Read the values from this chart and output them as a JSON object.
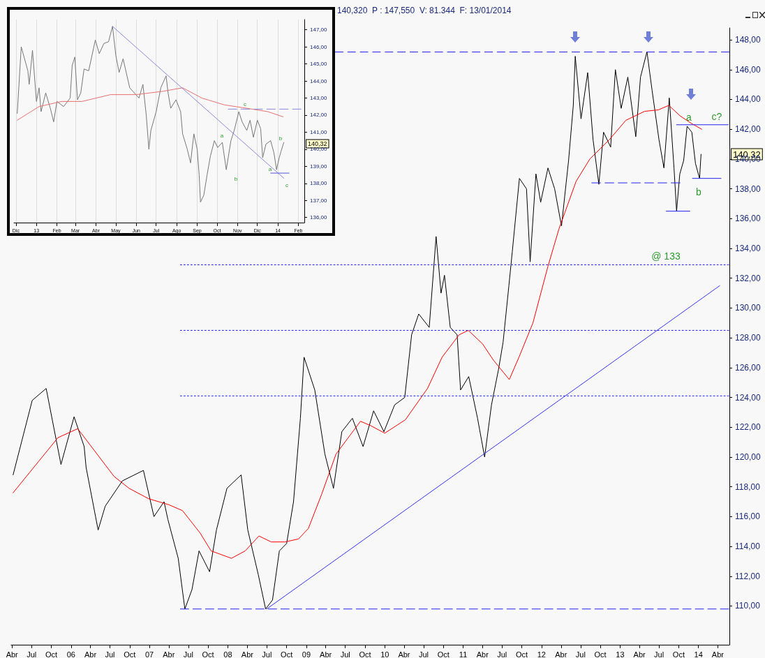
{
  "chart_data": [
    {
      "type": "line",
      "marker": "none",
      "grid": false,
      "xlim": [
        "2005-03-28",
        "2014-05-25"
      ],
      "ylim": [
        107.4,
        148.8
      ],
      "xticks": [
        {
          "value": "2005-04-01",
          "label": "Abr"
        },
        {
          "value": "2005-07-01",
          "label": "Jul"
        },
        {
          "value": "2005-10-01",
          "label": "Oct"
        },
        {
          "value": "2006-01-01",
          "label": "06"
        },
        {
          "value": "2006-04-01",
          "label": "Abr"
        },
        {
          "value": "2006-07-01",
          "label": "Jul"
        },
        {
          "value": "2006-10-01",
          "label": "Oct"
        },
        {
          "value": "2007-01-01",
          "label": "07"
        },
        {
          "value": "2007-04-01",
          "label": "Abr"
        },
        {
          "value": "2007-07-01",
          "label": "Jul"
        },
        {
          "value": "2007-10-01",
          "label": "Oct"
        },
        {
          "value": "2008-01-01",
          "label": "08"
        },
        {
          "value": "2008-04-01",
          "label": "Abr"
        },
        {
          "value": "2008-07-01",
          "label": "Jul"
        },
        {
          "value": "2008-10-01",
          "label": "Oct"
        },
        {
          "value": "2009-01-01",
          "label": "09"
        },
        {
          "value": "2009-04-01",
          "label": "Abr"
        },
        {
          "value": "2009-07-01",
          "label": "Jul"
        },
        {
          "value": "2009-10-01",
          "label": "Oct"
        },
        {
          "value": "2010-01-01",
          "label": "10"
        },
        {
          "value": "2010-04-01",
          "label": "Abr"
        },
        {
          "value": "2010-07-01",
          "label": "Jul"
        },
        {
          "value": "2010-10-01",
          "label": "Oct"
        },
        {
          "value": "2011-01-01",
          "label": "11"
        },
        {
          "value": "2011-04-01",
          "label": "Abr"
        },
        {
          "value": "2011-07-01",
          "label": "Jul"
        },
        {
          "value": "2011-10-01",
          "label": "Oct"
        },
        {
          "value": "2012-01-01",
          "label": "12"
        },
        {
          "value": "2012-04-01",
          "label": "Abr"
        },
        {
          "value": "2012-07-01",
          "label": "Jul"
        },
        {
          "value": "2012-10-01",
          "label": "Oct"
        },
        {
          "value": "2013-01-01",
          "label": "13"
        },
        {
          "value": "2013-04-01",
          "label": "Abr"
        },
        {
          "value": "2013-07-01",
          "label": "Jul"
        },
        {
          "value": "2013-10-01",
          "label": "Oct"
        },
        {
          "value": "2014-01-01",
          "label": "14"
        },
        {
          "value": "2014-04-01",
          "label": "Abr"
        }
      ],
      "yticks": [
        {
          "value": 110,
          "label": "110,00"
        },
        {
          "value": 112,
          "label": "112,00"
        },
        {
          "value": 114,
          "label": "114,00"
        },
        {
          "value": 116,
          "label": "116,00"
        },
        {
          "value": 118,
          "label": "118,00"
        },
        {
          "value": 120,
          "label": "120,00"
        },
        {
          "value": 122,
          "label": "122,00"
        },
        {
          "value": 124,
          "label": "124,00"
        },
        {
          "value": 126,
          "label": "126,00"
        },
        {
          "value": 128,
          "label": "128,00"
        },
        {
          "value": 130,
          "label": "130,00"
        },
        {
          "value": 132,
          "label": "132,00"
        },
        {
          "value": 134,
          "label": "134,00"
        },
        {
          "value": 136,
          "label": "136,00"
        },
        {
          "value": 138,
          "label": "138,00"
        },
        {
          "value": 140,
          "label": "140,00"
        },
        {
          "value": 142,
          "label": "142,00"
        },
        {
          "value": 144,
          "label": "144,00"
        },
        {
          "value": 146,
          "label": "146,00"
        },
        {
          "value": 148,
          "label": "148,00"
        }
      ],
      "ref_lines": [
        {
          "axis": "y",
          "value": 147.2,
          "color": "#2222ee",
          "line_style": "dashed"
        }
      ],
      "series": [
        {
          "color": "#000000",
          "x": [
            "2005-04-06",
            "2005-07-04",
            "2005-09-07",
            "2005-11-15",
            "2006-01-15",
            "2006-03-03",
            "2006-03-12",
            "2006-04-21",
            "2006-05-07",
            "2006-06-09",
            "2006-08-28",
            "2006-12-04",
            "2007-01-22",
            "2007-03-10",
            "2007-03-28",
            "2007-05-15",
            "2007-06-15",
            "2007-07-18",
            "2007-08-20",
            "2007-10-08",
            "2007-11-09",
            "2007-12-28",
            "2008-03-03",
            "2008-04-03",
            "2008-05-22",
            "2008-06-25",
            "2008-07-27",
            "2008-08-28",
            "2008-10-01",
            "2008-11-02",
            "2008-12-04",
            "2008-12-21",
            "2009-02-09",
            "2009-03-28",
            "2009-05-07",
            "2009-06-15",
            "2009-08-03",
            "2009-09-22",
            "2009-11-10",
            "2009-12-28",
            "2010-02-16",
            "2010-04-04",
            "2010-05-06",
            "2010-06-08",
            "2010-07-27",
            "2010-08-28",
            "2010-09-20",
            "2010-10-06",
            "2010-11-02",
            "2010-12-04",
            "2010-12-20",
            "2011-01-27",
            "2011-03-09",
            "2011-04-11",
            "2011-05-13",
            "2011-06-15",
            "2011-07-06",
            "2011-08-02",
            "2011-08-18",
            "2011-09-20",
            "2011-10-23",
            "2011-11-09",
            "2011-12-06",
            "2011-12-28",
            "2012-01-31",
            "2012-03-02",
            "2012-04-03",
            "2012-05-06",
            "2012-05-28",
            "2012-06-06",
            "2012-07-03",
            "2012-08-03",
            "2012-08-28",
            "2012-09-24",
            "2012-10-16",
            "2012-11-18",
            "2012-12-10",
            "2013-01-06",
            "2013-02-06",
            "2013-03-15",
            "2013-04-06",
            "2013-05-06",
            "2013-05-30",
            "2013-07-01",
            "2013-07-24",
            "2013-08-18",
            "2013-09-09",
            "2013-09-21",
            "2013-10-06",
            "2013-10-24",
            "2013-11-09",
            "2013-12-01",
            "2013-12-18",
            "2014-01-06",
            "2014-01-13"
          ],
          "values": [
            118.8,
            123.8,
            124.6,
            119.5,
            122.7,
            120.7,
            119.3,
            116.3,
            115.1,
            116.7,
            118.4,
            119.1,
            116.0,
            117.0,
            115.8,
            113.2,
            109.8,
            111.1,
            113.7,
            112.3,
            115.1,
            117.9,
            118.8,
            115.1,
            112.1,
            109.8,
            110.4,
            113.7,
            114.2,
            117.0,
            122.6,
            126.7,
            124.5,
            120.2,
            117.9,
            121.7,
            122.6,
            120.7,
            123.1,
            121.7,
            123.5,
            124.0,
            128.2,
            129.6,
            128.7,
            134.8,
            131.0,
            132.2,
            128.7,
            128.2,
            124.5,
            125.4,
            122.6,
            120.0,
            123.5,
            125.9,
            127.7,
            131.5,
            133.8,
            138.7,
            138.0,
            133.1,
            139.0,
            137.1,
            139.4,
            138.0,
            135.5,
            139.9,
            143.6,
            146.9,
            142.7,
            145.8,
            141.3,
            138.3,
            141.8,
            140.8,
            146.0,
            143.4,
            145.5,
            141.5,
            145.5,
            147.2,
            144.6,
            141.3,
            139.4,
            144.1,
            139.4,
            136.5,
            139.0,
            139.9,
            142.2,
            141.8,
            139.7,
            138.7,
            140.32
          ]
        },
        {
          "color": "#ff0000",
          "x": [
            "2005-04-06",
            "2005-11-01",
            "2006-02-01",
            "2006-07-20",
            "2006-09-28",
            "2006-12-28",
            "2007-04-01",
            "2007-06-04",
            "2007-08-25",
            "2007-10-15",
            "2008-01-18",
            "2008-03-22",
            "2008-05-25",
            "2008-07-21",
            "2008-09-24",
            "2008-11-25",
            "2009-01-10",
            "2009-03-13",
            "2009-05-19",
            "2009-09-10",
            "2009-10-28",
            "2010-01-01",
            "2010-04-07",
            "2010-07-19",
            "2010-09-25",
            "2010-12-13",
            "2011-01-25",
            "2011-04-01",
            "2011-05-22",
            "2011-08-04",
            "2011-09-18",
            "2011-11-22",
            "2012-01-31",
            "2012-03-22",
            "2012-06-10",
            "2012-08-13",
            "2012-11-12",
            "2013-01-28",
            "2013-04-25",
            "2013-06-28",
            "2013-08-16",
            "2013-10-07",
            "2013-11-28",
            "2014-01-16"
          ],
          "values": [
            117.6,
            121.3,
            121.9,
            118.7,
            117.9,
            117.2,
            116.8,
            116.4,
            114.9,
            113.7,
            113.2,
            113.7,
            114.7,
            114.3,
            114.3,
            114.5,
            115.2,
            117.5,
            120.2,
            122.4,
            122.1,
            121.6,
            122.5,
            124.6,
            126.7,
            128.2,
            128.5,
            127.6,
            126.5,
            125.2,
            126.7,
            129.0,
            132.8,
            135.3,
            138.5,
            140.0,
            141.3,
            142.6,
            143.2,
            143.3,
            143.6,
            142.9,
            142.4,
            142.0
          ]
        },
        {
          "color": "#3333ff",
          "x": [
            "2008-06-30",
            "2014-04-10"
          ],
          "values": [
            109.8,
            131.5
          ]
        },
        {
          "color": "#2222ee",
          "line_style": "dashed",
          "x": [
            "2007-05-25",
            "2014-05-22"
          ],
          "values": [
            109.8,
            109.8
          ]
        },
        {
          "color": "#2222ee",
          "line_style": "dotted",
          "x": [
            "2007-05-25",
            "2014-05-22"
          ],
          "values": [
            132.9,
            132.9
          ]
        },
        {
          "color": "#2222ee",
          "line_style": "dotted",
          "x": [
            "2007-05-25",
            "2014-05-22"
          ],
          "values": [
            128.5,
            128.5
          ]
        },
        {
          "color": "#2222ee",
          "line_style": "dotted",
          "x": [
            "2007-05-25",
            "2014-05-22"
          ],
          "values": [
            124.1,
            124.1
          ]
        },
        {
          "color": "#2222ee",
          "line_style": "dashed",
          "x": [
            "2012-08-22",
            "2013-10-07"
          ],
          "values": [
            138.4,
            138.4
          ]
        },
        {
          "color": "#2222ee",
          "x": [
            "2013-08-04",
            "2013-11-22"
          ],
          "values": [
            136.5,
            136.5
          ]
        },
        {
          "color": "#2222ee",
          "x": [
            "2013-09-21",
            "2014-05-20"
          ],
          "values": [
            142.3,
            142.3
          ]
        },
        {
          "color": "#2222ee",
          "x": [
            "2013-12-04",
            "2014-04-16"
          ],
          "values": [
            138.7,
            138.7
          ]
        }
      ],
      "annotations": [
        "140,320  P : 147,550  V: 81.344  F: 13/01/2014",
        "a",
        "c?",
        "b",
        "@ 133",
        {
          "text": "140,32",
          "y": 140.32
        }
      ]
    },
    {
      "type": "line",
      "marker": "none",
      "grid": "x",
      "xlim": [
        "2012-11-28",
        "2014-02-10"
      ],
      "ylim": [
        135.7,
        147.6
      ],
      "xticks": [
        {
          "value": "2012-12-01",
          "label": "Dic"
        },
        {
          "value": "2013-01-01",
          "label": "13"
        },
        {
          "value": "2013-02-01",
          "label": "Feb"
        },
        {
          "value": "2013-03-01",
          "label": "Mar"
        },
        {
          "value": "2013-04-01",
          "label": "Abr"
        },
        {
          "value": "2013-05-01",
          "label": "May"
        },
        {
          "value": "2013-06-01",
          "label": "Jun"
        },
        {
          "value": "2013-07-01",
          "label": "Jul"
        },
        {
          "value": "2013-08-01",
          "label": "Ago"
        },
        {
          "value": "2013-09-01",
          "label": "Sep"
        },
        {
          "value": "2013-10-01",
          "label": "Oct"
        },
        {
          "value": "2013-11-01",
          "label": "Nov"
        },
        {
          "value": "2013-12-01",
          "label": "Dic"
        },
        {
          "value": "2014-01-01",
          "label": "14"
        },
        {
          "value": "2014-02-01",
          "label": "Feb"
        }
      ],
      "yticks": [
        {
          "value": 136,
          "label": "136,00"
        },
        {
          "value": 137,
          "label": "137,00"
        },
        {
          "value": 138,
          "label": "138,00"
        },
        {
          "value": 139,
          "label": "139,00"
        },
        {
          "value": 140,
          "label": "140,00"
        },
        {
          "value": 141,
          "label": "141,00"
        },
        {
          "value": 142,
          "label": "142,00"
        },
        {
          "value": 143,
          "label": "143,00"
        },
        {
          "value": 144,
          "label": "144,00"
        },
        {
          "value": 145,
          "label": "145,00"
        },
        {
          "value": 146,
          "label": "146,00"
        },
        {
          "value": 147,
          "label": "147,00"
        }
      ],
      "series": [
        {
          "color": "#777777",
          "x": [
            "2012-12-03",
            "2012-12-09",
            "2012-12-19",
            "2012-12-21",
            "2012-12-26",
            "2013-01-01",
            "2013-01-05",
            "2013-01-08",
            "2013-01-15",
            "2013-01-22",
            "2013-01-27",
            "2013-02-01",
            "2013-02-11",
            "2013-02-21",
            "2013-02-24",
            "2013-02-28",
            "2013-03-04",
            "2013-03-09",
            "2013-03-14",
            "2013-03-21",
            "2013-03-31",
            "2013-04-06",
            "2013-04-13",
            "2013-04-20",
            "2013-04-26",
            "2013-05-01",
            "2013-05-06",
            "2013-05-12",
            "2013-05-22",
            "2013-05-29",
            "2013-06-05",
            "2013-06-11",
            "2013-06-16",
            "2013-06-20",
            "2013-06-23",
            "2013-07-01",
            "2013-07-08",
            "2013-07-16",
            "2013-07-19",
            "2013-07-23",
            "2013-07-31",
            "2013-08-07",
            "2013-08-10",
            "2013-08-17",
            "2013-08-22",
            "2013-08-27",
            "2013-09-01",
            "2013-09-04",
            "2013-09-06",
            "2013-09-11",
            "2013-09-16",
            "2013-09-21",
            "2013-09-27",
            "2013-10-02",
            "2013-10-09",
            "2013-10-15",
            "2013-10-22",
            "2013-10-27",
            "2013-11-03",
            "2013-11-08",
            "2013-11-15",
            "2013-11-20",
            "2013-11-25",
            "2013-12-01",
            "2013-12-06",
            "2013-12-09",
            "2013-12-14",
            "2013-12-21",
            "2013-12-26",
            "2013-12-30",
            "2014-01-03",
            "2014-01-06",
            "2014-01-10"
          ],
          "values": [
            142.1,
            146.0,
            144.6,
            143.8,
            145.8,
            142.8,
            143.6,
            142.2,
            143.3,
            142.4,
            141.6,
            142.8,
            142.5,
            143.0,
            144.9,
            145.4,
            142.9,
            143.3,
            144.7,
            144.6,
            146.4,
            145.6,
            146.2,
            146.3,
            147.2,
            145.5,
            144.5,
            145.3,
            143.6,
            143.3,
            143.0,
            143.8,
            142.0,
            140.0,
            141.1,
            142.2,
            143.6,
            144.3,
            143.3,
            142.4,
            142.9,
            142.2,
            140.9,
            140.0,
            139.2,
            140.9,
            140.0,
            138.5,
            136.9,
            137.3,
            138.5,
            139.6,
            140.5,
            140.1,
            140.4,
            138.8,
            140.5,
            141.1,
            142.2,
            141.6,
            141.1,
            141.7,
            140.7,
            141.7,
            141.2,
            139.5,
            140.3,
            140.5,
            139.8,
            138.8,
            139.5,
            139.9,
            140.4
          ]
        },
        {
          "color": "#e87070",
          "x": [
            "2012-12-03",
            "2013-01-05",
            "2013-02-08",
            "2013-03-11",
            "2013-04-23",
            "2013-06-01",
            "2013-07-12",
            "2013-08-10",
            "2013-09-08",
            "2013-10-12",
            "2013-11-15",
            "2013-12-17",
            "2014-01-09"
          ],
          "values": [
            141.7,
            142.5,
            142.8,
            142.8,
            143.2,
            143.2,
            143.4,
            143.6,
            143.0,
            142.6,
            142.4,
            142.2,
            141.9
          ]
        },
        {
          "color": "#8888dd",
          "x": [
            "2013-04-26",
            "2014-01-10"
          ],
          "values": [
            147.2,
            138.3
          ]
        },
        {
          "color": "#8888dd",
          "line_style": "dashed",
          "x": [
            "2013-10-18",
            "2014-02-05"
          ],
          "values": [
            142.35,
            142.35
          ]
        },
        {
          "color": "#5555dd",
          "x": [
            "2013-12-21",
            "2014-01-18"
          ],
          "values": [
            138.6,
            138.6
          ]
        }
      ],
      "annotations": [
        "c",
        "a",
        "b",
        "a",
        "b",
        "c",
        {
          "text": "140,32",
          "y": 140.32
        }
      ]
    }
  ]
}
